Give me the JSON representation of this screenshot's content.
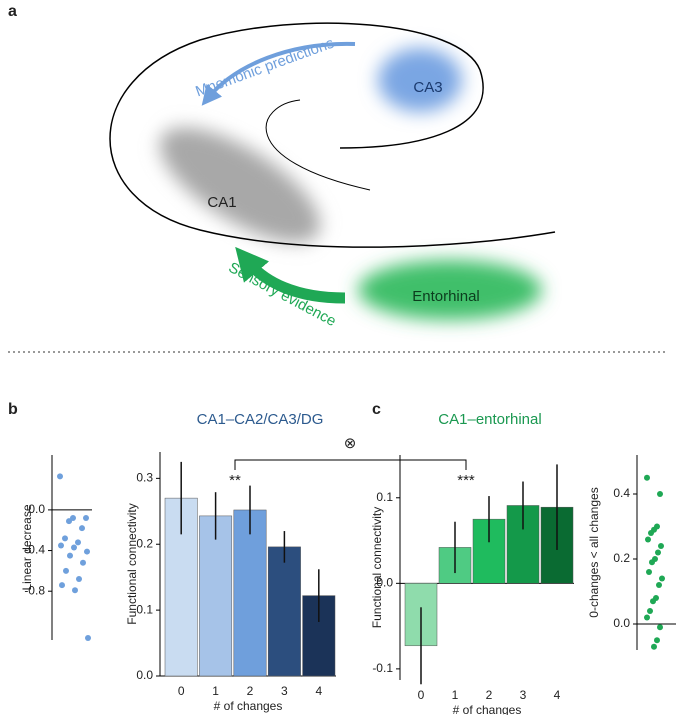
{
  "diagram": {
    "label": "a",
    "mnemonic": "Mnemonic predictions",
    "ca3": "CA3",
    "ca1": "CA1",
    "sensory": "Sensory evidence",
    "entorhinal": "Entorhinal"
  },
  "panels": [
    {
      "label": "b",
      "title": "CA1–CA2/CA3/DG",
      "color": "#2c5a8e"
    },
    {
      "label": "c",
      "title": "CA1–entorhinal",
      "color": "#1a9850"
    }
  ],
  "annotations": {
    "interaction": "⊗",
    "left": "**",
    "right": "***"
  },
  "chart_data": [
    {
      "type": "strip",
      "ylabel": "Linear decrease",
      "color": "#6fa0dc",
      "ylim": [
        -1.28,
        0.54
      ],
      "yticks": [
        {
          "value": 0,
          "label": "0.0"
        },
        -0.4,
        {
          "value": -0.8,
          "label": "-0.8"
        }
      ],
      "values": [
        0.33,
        -0.08,
        -0.08,
        -0.11,
        -0.18,
        -0.28,
        -0.32,
        -0.35,
        -0.37,
        -0.41,
        -0.45,
        -0.52,
        -0.6,
        -0.68,
        -0.74,
        -0.79,
        -1.26
      ]
    },
    {
      "type": "bar",
      "xlabel": "# of changes",
      "ylabel": "Functional connectivity",
      "ylim": [
        0,
        0.34
      ],
      "yticks": [
        {
          "value": 0,
          "label": "0.0"
        },
        0.1,
        0.2,
        0.3
      ],
      "categories": [
        "0",
        "1",
        "2",
        "3",
        "4"
      ],
      "values": [
        0.27,
        0.243,
        0.252,
        0.196,
        0.122
      ],
      "errors": [
        0.055,
        0.036,
        0.037,
        0.024,
        0.04
      ],
      "colors": [
        "#c9dcf1",
        "#a6c3e8",
        "#6f9fdc",
        "#2c4e7e",
        "#1b3358"
      ]
    },
    {
      "type": "bar",
      "xlabel": "# of changes",
      "ylabel": "Functional connectivity",
      "ylim": [
        -0.113,
        0.15
      ],
      "yticks": [
        -0.1,
        {
          "value": 0,
          "label": "0.0"
        },
        0.1
      ],
      "categories": [
        "0",
        "1",
        "2",
        "3",
        "4"
      ],
      "values": [
        -0.073,
        0.042,
        0.075,
        0.091,
        0.089
      ],
      "errors": [
        0.045,
        0.03,
        0.027,
        0.028,
        0.05
      ],
      "colors": [
        "#8fdcac",
        "#4fcb83",
        "#1fbb5e",
        "#14994a",
        "#0a6b32"
      ]
    },
    {
      "type": "strip",
      "ylabel": "0-changes < all changes",
      "color": "#1fa855",
      "ylim": [
        -0.08,
        0.52
      ],
      "yticks": [
        {
          "value": 0,
          "label": "0.0"
        },
        0.2,
        0.4
      ],
      "values": [
        0.45,
        0.4,
        0.3,
        0.29,
        0.28,
        0.26,
        0.24,
        0.22,
        0.2,
        0.19,
        0.16,
        0.14,
        0.12,
        0.08,
        0.07,
        0.04,
        0.02,
        -0.01,
        -0.05,
        -0.07
      ]
    }
  ]
}
